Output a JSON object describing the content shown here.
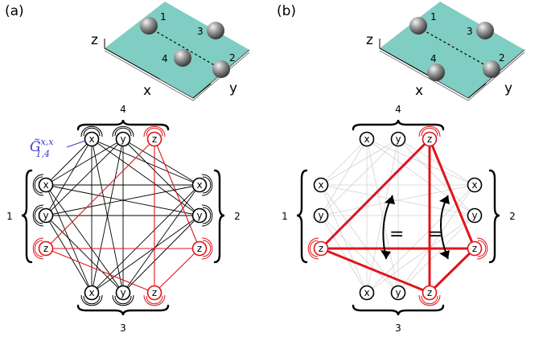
{
  "panels": [
    {
      "label": "(a)",
      "crystal": {
        "axes": [
          "x",
          "y",
          "z"
        ],
        "ions": [
          "1",
          "2",
          "3",
          "4"
        ]
      },
      "groups": [
        "1",
        "2",
        "3",
        "4"
      ],
      "node_labels": [
        "x",
        "y",
        "z"
      ],
      "coupling_label": {
        "main": "G̃",
        "sup": "x,x",
        "sub": "1,4"
      }
    },
    {
      "label": "(b)",
      "crystal": {
        "axes": [
          "x",
          "y",
          "z"
        ],
        "ions": [
          "1",
          "2",
          "3",
          "4"
        ]
      },
      "groups": [
        "1",
        "2",
        "3",
        "4"
      ],
      "node_labels": [
        "x",
        "y",
        "z"
      ],
      "equal_sign": "="
    }
  ],
  "colors": {
    "black": "#000000",
    "red": "#e0151b",
    "gray": "#d2d2d2",
    "surface": "#7fcdc3",
    "coupling_label": "#3a3ac8"
  }
}
